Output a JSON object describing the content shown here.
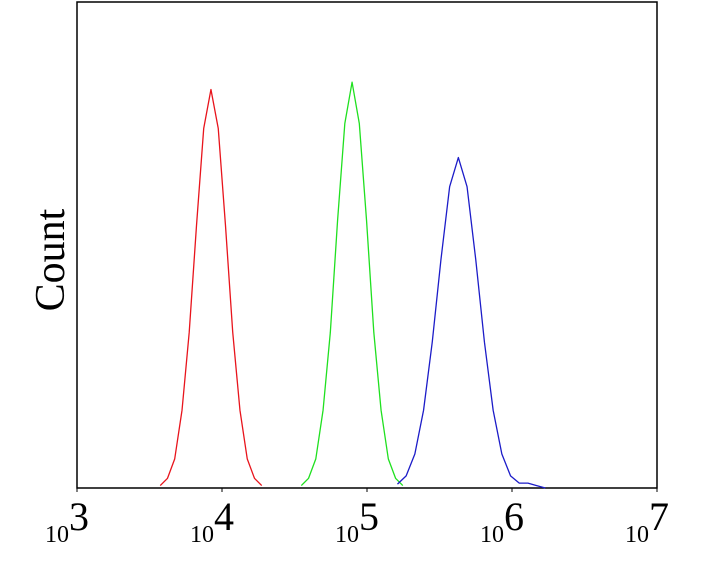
{
  "chart_data": {
    "type": "line",
    "y_label": "Count",
    "xscale": "log",
    "xlim": [
      1000,
      10000000
    ],
    "xticks": [
      {
        "value": 1000,
        "label": "10",
        "exponent": "3"
      },
      {
        "value": 10000,
        "label": "10",
        "exponent": "4"
      },
      {
        "value": 100000,
        "label": "10",
        "exponent": "5"
      },
      {
        "value": 1000000,
        "label": "10",
        "exponent": "6"
      },
      {
        "value": 10000000,
        "label": "10",
        "exponent": "7"
      }
    ],
    "ylim": [
      0,
      100
    ],
    "series": [
      {
        "color": "#e8141c",
        "x": [
          3750,
          4210,
          4720,
          5300,
          5940,
          6670,
          7480,
          8390,
          9420,
          10570,
          11860,
          13300,
          14930,
          16750,
          18790
        ],
        "values": [
          0.5,
          2,
          6,
          16,
          32,
          54,
          74,
          82,
          74,
          54,
          32,
          16,
          6,
          2,
          0.5
        ]
      },
      {
        "color": "#1fe01f",
        "x": [
          35240,
          39540,
          44360,
          49770,
          55850,
          62660,
          70310,
          78890,
          88510,
          99310,
          111430,
          125030,
          140280,
          157400,
          176600
        ],
        "values": [
          0.5,
          2,
          6,
          16,
          32,
          55,
          75,
          83.5,
          75,
          55,
          32,
          16,
          6,
          2,
          0.5
        ]
      },
      {
        "color": "#1c1cc8",
        "x": [
          162200,
          186200,
          213800,
          245500,
          281800,
          323600,
          371500,
          426600,
          489800,
          562300,
          645700,
          741300,
          851100,
          977200,
          1122000,
          1288000,
          1479000,
          1698000
        ],
        "values": [
          0.8,
          2.5,
          7,
          16,
          30,
          47,
          62,
          68,
          62,
          47,
          30,
          16,
          7,
          2.5,
          1,
          1,
          0.5,
          0
        ]
      }
    ]
  }
}
